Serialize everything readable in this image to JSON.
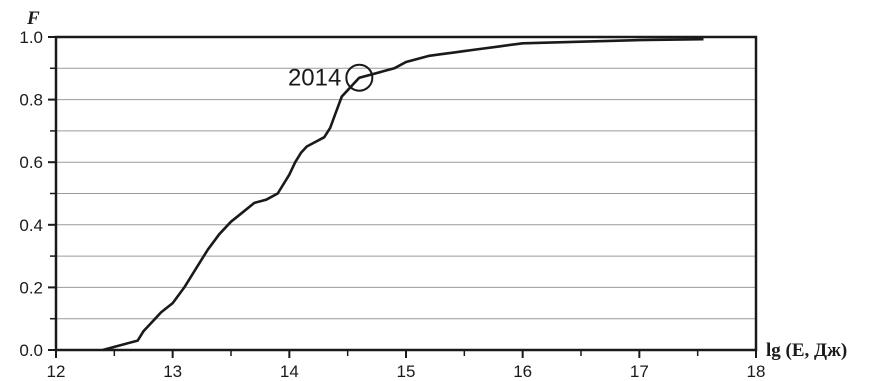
{
  "chart_data": {
    "type": "line",
    "title": "",
    "xlabel": "lg (E, Дж)",
    "ylabel": "F",
    "xlim": [
      12,
      18
    ],
    "ylim": [
      0,
      1.0
    ],
    "x_ticks": [
      "12",
      "13",
      "14",
      "15",
      "16",
      "17",
      "18"
    ],
    "y_ticks": [
      "0.0",
      "0.2",
      "0.4",
      "0.6",
      "0.8",
      "1.0"
    ],
    "grid": "horizontal",
    "legend": "none",
    "series": [
      {
        "x": [
          12.4,
          12.5,
          12.6,
          12.7,
          12.75,
          12.8,
          12.85,
          12.9,
          13.0,
          13.1,
          13.2,
          13.3,
          13.4,
          13.5,
          13.6,
          13.7,
          13.8,
          13.9,
          14.0,
          14.05,
          14.1,
          14.15,
          14.2,
          14.3,
          14.35,
          14.4,
          14.45,
          14.5,
          14.55,
          14.6,
          14.7,
          14.8,
          14.9,
          15.0,
          15.1,
          15.2,
          15.3,
          15.4,
          15.5,
          15.6,
          15.8,
          16.0,
          16.5,
          17.0,
          17.55
        ],
        "y": [
          0.0,
          0.01,
          0.02,
          0.03,
          0.06,
          0.08,
          0.1,
          0.12,
          0.15,
          0.2,
          0.26,
          0.32,
          0.37,
          0.41,
          0.44,
          0.47,
          0.48,
          0.5,
          0.56,
          0.6,
          0.63,
          0.65,
          0.66,
          0.68,
          0.71,
          0.76,
          0.81,
          0.83,
          0.85,
          0.87,
          0.88,
          0.89,
          0.9,
          0.92,
          0.93,
          0.94,
          0.945,
          0.95,
          0.955,
          0.96,
          0.97,
          0.98,
          0.985,
          0.99,
          0.993
        ]
      }
    ],
    "annotations": [
      {
        "text": "2014",
        "x": 14.6,
        "y": 0.87
      }
    ]
  }
}
